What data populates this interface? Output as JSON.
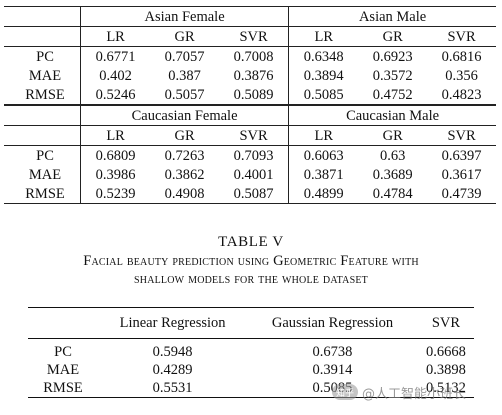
{
  "grid_a": {
    "groups": [
      "Asian Female",
      "Asian Male"
    ],
    "models": [
      "LR",
      "GR",
      "SVR",
      "LR",
      "GR",
      "SVR"
    ],
    "rows": [
      {
        "label": "PC",
        "values": [
          "0.6771",
          "0.7057",
          "0.7008",
          "0.6348",
          "0.6923",
          "0.6816"
        ]
      },
      {
        "label": "MAE",
        "values": [
          "0.402",
          "0.387",
          "0.3876",
          "0.3894",
          "0.3572",
          "0.356"
        ]
      },
      {
        "label": "RMSE",
        "values": [
          "0.5246",
          "0.5057",
          "0.5089",
          "0.5085",
          "0.4752",
          "0.4823"
        ]
      }
    ]
  },
  "grid_b": {
    "groups": [
      "Caucasian Female",
      "Caucasian Male"
    ],
    "models": [
      "LR",
      "GR",
      "SVR",
      "LR",
      "GR",
      "SVR"
    ],
    "rows": [
      {
        "label": "PC",
        "values": [
          "0.6809",
          "0.7263",
          "0.7093",
          "0.6063",
          "0.63",
          "0.6397"
        ]
      },
      {
        "label": "MAE",
        "values": [
          "0.3986",
          "0.3862",
          "0.4001",
          "0.3871",
          "0.3689",
          "0.3617"
        ]
      },
      {
        "label": "RMSE",
        "values": [
          "0.5239",
          "0.4908",
          "0.5087",
          "0.4899",
          "0.4784",
          "0.4739"
        ]
      }
    ]
  },
  "caption": {
    "title": "TABLE V",
    "line1": "Facial beauty prediction using Geometric Feature with",
    "line2": "shallow models for the whole dataset"
  },
  "grid_c": {
    "headers": [
      "Linear Regression",
      "Gaussian Regression",
      "SVR"
    ],
    "rows": [
      {
        "label": "PC",
        "values": [
          "0.5948",
          "0.6738",
          "0.6668"
        ]
      },
      {
        "label": "MAE",
        "values": [
          "0.4289",
          "0.3914",
          "0.3898"
        ]
      },
      {
        "label": "RMSE",
        "values": [
          "0.5531",
          "0.5085",
          "0.5132"
        ]
      }
    ]
  },
  "watermark": {
    "logo_text": "知乎",
    "text": "@人工智能小班长"
  }
}
